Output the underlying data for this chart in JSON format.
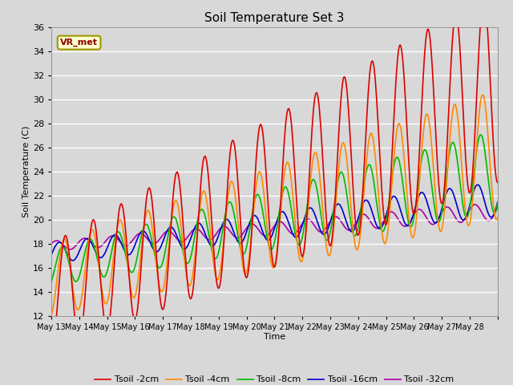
{
  "title": "Soil Temperature Set 3",
  "xlabel": "Time",
  "ylabel": "Soil Temperature (C)",
  "ylim": [
    12,
    36
  ],
  "yticks": [
    12,
    14,
    16,
    18,
    20,
    22,
    24,
    26,
    28,
    30,
    32,
    34,
    36
  ],
  "background_color": "#d8d8d8",
  "plot_bg_color": "#d8d8d8",
  "line_colors": {
    "Tsoil -2cm": "#dd0000",
    "Tsoil -4cm": "#ff8800",
    "Tsoil -8cm": "#00bb00",
    "Tsoil -16cm": "#0000cc",
    "Tsoil -32cm": "#aa00aa"
  },
  "annotation_text": "VR_met",
  "x_tick_labels": [
    "May 13",
    "May 14",
    "May 15",
    "May 16",
    "May 17",
    "May 18",
    "May 19",
    "May 20",
    "May 21",
    "May 22",
    "May 23",
    "May 24",
    "May 25",
    "May 26",
    "May 27",
    "May 28"
  ]
}
